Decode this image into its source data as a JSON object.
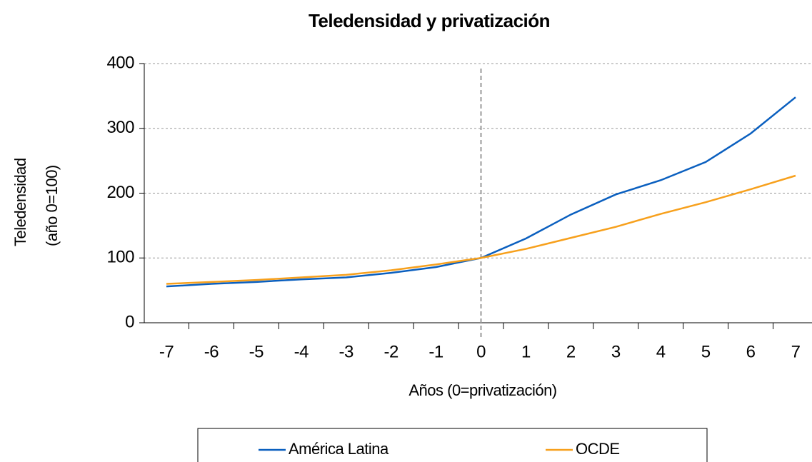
{
  "chart_data": {
    "type": "line",
    "title": "Teledensidad y privatización",
    "xlabel": "Años (0=privatización)",
    "ylabel": [
      "Teledensidad",
      "(año 0=100)"
    ],
    "categories": [
      -7,
      -6,
      -5,
      -4,
      -3,
      -2,
      -1,
      0,
      1,
      2,
      3,
      4,
      5,
      6,
      7
    ],
    "series": [
      {
        "name": "América Latina",
        "color": "#0a5fbf",
        "values": [
          56,
          60,
          63,
          67,
          70,
          77,
          86,
          100,
          130,
          167,
          198,
          220,
          248,
          292,
          348
        ]
      },
      {
        "name": "OCDE",
        "color": "#f7a01c",
        "values": [
          60,
          63,
          66,
          70,
          74,
          81,
          90,
          100,
          114,
          131,
          148,
          168,
          186,
          206,
          227
        ]
      }
    ],
    "ylim": [
      0,
      400
    ],
    "yticks": [
      0,
      100,
      200,
      300,
      400
    ],
    "grid": true,
    "vline": 0,
    "legend": "bottom"
  }
}
